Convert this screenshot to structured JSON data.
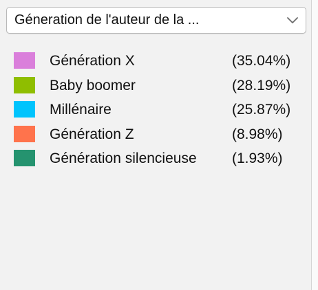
{
  "filter": {
    "selected_label": "Géneration de l'auteur de la ..."
  },
  "legend": {
    "items": [
      {
        "name": "Génération X",
        "percent": "(35.04%)",
        "color": "#da7fdb"
      },
      {
        "name": "Baby boomer",
        "percent": "(28.19%)",
        "color": "#8fbe00"
      },
      {
        "name": "Millénaire",
        "percent": "(25.87%)",
        "color": "#00c4fd"
      },
      {
        "name": "Génération Z",
        "percent": "(8.98%)",
        "color": "#ff734c"
      },
      {
        "name": "Génération silencieuse",
        "percent": "(1.93%)",
        "color": "#25936f"
      }
    ]
  }
}
